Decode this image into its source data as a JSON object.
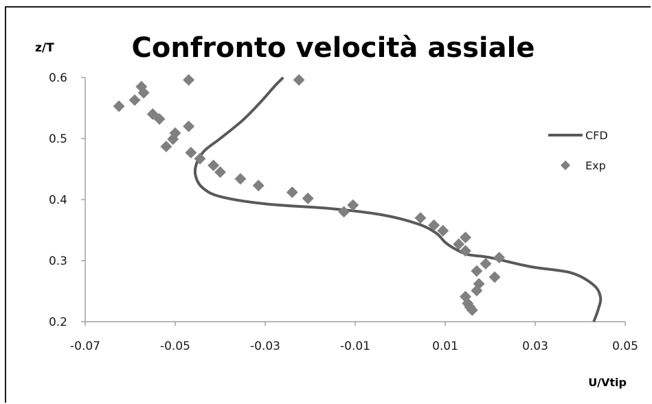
{
  "chart_data": {
    "type": "scatter",
    "title": "Confronto velocità assiale",
    "xlabel": "U/Vtip",
    "ylabel": "z/T",
    "xlim": [
      -0.07,
      0.05
    ],
    "ylim": [
      0.2,
      0.6
    ],
    "xticks": [
      "-0.07",
      "-0.05",
      "-0.03",
      "-0.01",
      "0.01",
      "0.03",
      "0.05"
    ],
    "yticks": [
      "0.2",
      "0.3",
      "0.4",
      "0.5",
      "0.6"
    ],
    "xtick_values": [
      -0.07,
      -0.05,
      -0.03,
      -0.01,
      0.01,
      0.03,
      0.05
    ],
    "ytick_values": [
      0.2,
      0.3,
      0.4,
      0.5,
      0.6
    ],
    "grid": false,
    "legend_position": "right",
    "series": [
      {
        "name": "CFD",
        "kind": "line",
        "color": "#595959",
        "points": [
          [
            0.043,
            0.2
          ],
          [
            0.044,
            0.22
          ],
          [
            0.0445,
            0.24
          ],
          [
            0.043,
            0.26
          ],
          [
            0.038,
            0.28
          ],
          [
            0.029,
            0.29
          ],
          [
            0.02,
            0.305
          ],
          [
            0.015,
            0.31
          ],
          [
            0.012,
            0.32
          ],
          [
            0.01,
            0.33
          ],
          [
            0.008,
            0.345
          ],
          [
            0.004,
            0.36
          ],
          [
            -0.004,
            0.375
          ],
          [
            -0.015,
            0.385
          ],
          [
            -0.03,
            0.393
          ],
          [
            -0.04,
            0.405
          ],
          [
            -0.044,
            0.42
          ],
          [
            -0.0455,
            0.44
          ],
          [
            -0.0452,
            0.46
          ],
          [
            -0.0435,
            0.48
          ],
          [
            -0.04,
            0.5
          ],
          [
            -0.035,
            0.53
          ],
          [
            -0.031,
            0.56
          ],
          [
            -0.028,
            0.585
          ],
          [
            -0.026,
            0.6
          ]
        ]
      },
      {
        "name": "Exp",
        "kind": "scatter",
        "color": "#808080",
        "points": [
          [
            -0.0625,
            0.553
          ],
          [
            -0.059,
            0.563
          ],
          [
            -0.0575,
            0.585
          ],
          [
            -0.057,
            0.575
          ],
          [
            -0.055,
            0.54
          ],
          [
            -0.0535,
            0.532
          ],
          [
            -0.052,
            0.487
          ],
          [
            -0.0505,
            0.499
          ],
          [
            -0.05,
            0.509
          ],
          [
            -0.047,
            0.52
          ],
          [
            -0.047,
            0.596
          ],
          [
            -0.0465,
            0.477
          ],
          [
            -0.0445,
            0.467
          ],
          [
            -0.0415,
            0.456
          ],
          [
            -0.04,
            0.445
          ],
          [
            -0.0355,
            0.434
          ],
          [
            -0.0315,
            0.423
          ],
          [
            -0.024,
            0.412
          ],
          [
            -0.0225,
            0.596
          ],
          [
            -0.0205,
            0.402
          ],
          [
            -0.0105,
            0.391
          ],
          [
            -0.0125,
            0.38
          ],
          [
            0.0045,
            0.37
          ],
          [
            0.0075,
            0.358
          ],
          [
            0.0095,
            0.349
          ],
          [
            0.0145,
            0.338
          ],
          [
            0.013,
            0.327
          ],
          [
            0.0145,
            0.316
          ],
          [
            0.022,
            0.305
          ],
          [
            0.019,
            0.295
          ],
          [
            0.017,
            0.283
          ],
          [
            0.021,
            0.273
          ],
          [
            0.0175,
            0.262
          ],
          [
            0.017,
            0.251
          ],
          [
            0.0145,
            0.241
          ],
          [
            0.015,
            0.23
          ],
          [
            0.0155,
            0.224
          ],
          [
            0.016,
            0.219
          ]
        ]
      }
    ]
  }
}
